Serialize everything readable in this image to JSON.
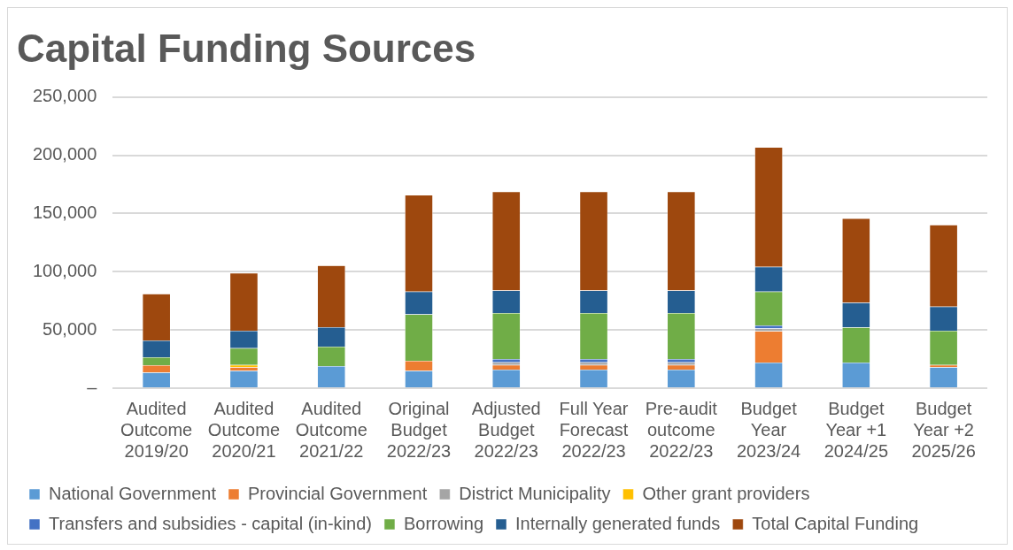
{
  "chart_data": {
    "type": "bar",
    "title": "Capital Funding Sources",
    "stacked": true,
    "categories": [
      "Audited\nOutcome\n2019/20",
      "Audited\nOutcome\n2020/21",
      "Audited\nOutcome\n2021/22",
      "Original\nBudget\n2022/23",
      "Adjusted\nBudget\n2022/23",
      "Full Year\nForecast\n2022/23",
      "Pre-audit\noutcome\n2022/23",
      "Budget\nYear\n2023/24",
      "Budget\nYear +1\n2024/25",
      "Budget\nYear +2\n2025/26"
    ],
    "series": [
      {
        "name": "National Government",
        "color": "#5b9bd5",
        "values": [
          13500,
          15000,
          19000,
          15000,
          16000,
          16000,
          16000,
          22000,
          22000,
          18000
        ]
      },
      {
        "name": "Provincial Government",
        "color": "#ed7d31",
        "values": [
          6300,
          3000,
          null,
          8500,
          4000,
          4000,
          4000,
          27000,
          null,
          2000
        ]
      },
      {
        "name": "District Municipality",
        "color": "#a5a5a5",
        "values": [
          null,
          null,
          null,
          null,
          2300,
          2300,
          2300,
          2300,
          null,
          null
        ]
      },
      {
        "name": "Other grant providers",
        "color": "#ffc000",
        "values": [
          null,
          2000,
          null,
          null,
          null,
          null,
          null,
          null,
          null,
          null
        ]
      },
      {
        "name": "Transfers and subsidies - capital (in-kind)",
        "color": "#4472c4",
        "values": [
          null,
          null,
          null,
          null,
          2700,
          2700,
          2700,
          2700,
          null,
          null
        ]
      },
      {
        "name": "Borrowing",
        "color": "#70ad47",
        "values": [
          6800,
          14400,
          16700,
          40000,
          39600,
          39600,
          39600,
          29000,
          30200,
          29300
        ]
      },
      {
        "name": "Internally generated funds",
        "color": "#255e91",
        "values": [
          14400,
          15000,
          16700,
          19400,
          19400,
          19400,
          19400,
          21200,
          21200,
          20700
        ]
      },
      {
        "name": "Total Capital Funding",
        "color": "#9e480e",
        "values": [
          40000,
          49500,
          53000,
          83000,
          84700,
          84700,
          84700,
          102700,
          72500,
          70300
        ]
      }
    ],
    "ylim": [
      0,
      250000
    ],
    "yticks": [
      {
        "value": 0,
        "label": "–"
      },
      {
        "value": 50000,
        "label": "50,000"
      },
      {
        "value": 100000,
        "label": "100,000"
      },
      {
        "value": 150000,
        "label": "150,000"
      },
      {
        "value": 200000,
        "label": "200,000"
      },
      {
        "value": 250000,
        "label": "250,000"
      }
    ],
    "grid": "y",
    "legend": "bottom"
  }
}
